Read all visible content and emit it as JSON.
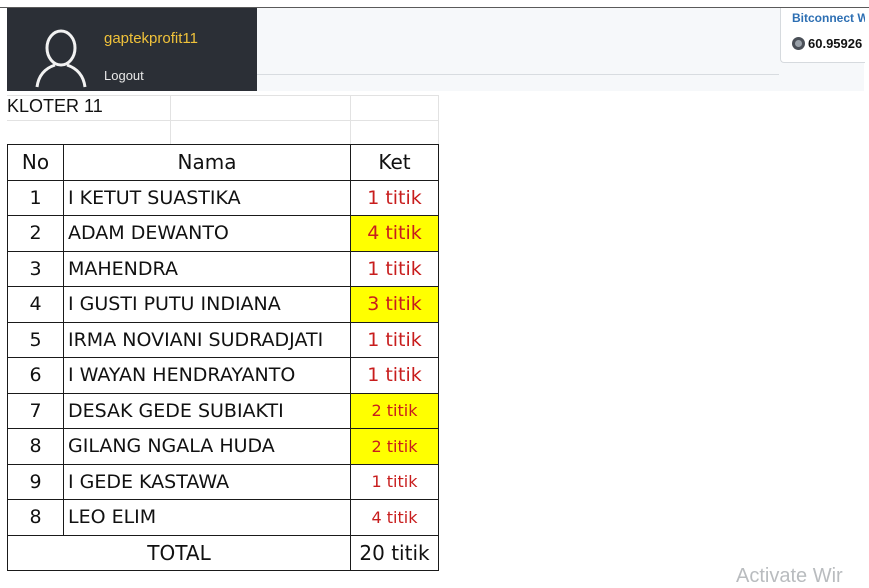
{
  "user": {
    "username": "gaptekprofit11",
    "logout_label": "Logout"
  },
  "wallet": {
    "title": "Bitconnect Wa",
    "balance": "60.95926"
  },
  "sheet": {
    "title": "KLOTER 11",
    "headers": {
      "no": "No",
      "nama": "Nama",
      "ket": "Ket"
    },
    "rows": [
      {
        "no": "1",
        "nama": "I KETUT SUASTIKA",
        "ket": "1 titik",
        "highlight": false
      },
      {
        "no": "2",
        "nama": "ADAM DEWANTO",
        "ket": "4 titik",
        "highlight": true
      },
      {
        "no": "3",
        "nama": "MAHENDRA",
        "ket": "1 titik",
        "highlight": false
      },
      {
        "no": "4",
        "nama": "I GUSTI PUTU INDIANA",
        "ket": "3 titik",
        "highlight": true
      },
      {
        "no": "5",
        "nama": "IRMA NOVIANI SUDRADJATI",
        "ket": "1 titik",
        "highlight": false
      },
      {
        "no": "6",
        "nama": "I WAYAN HENDRAYANTO",
        "ket": "1 titik",
        "highlight": false
      },
      {
        "no": "7",
        "nama": "DESAK GEDE SUBIAKTI",
        "ket": "2 titik",
        "highlight": true
      },
      {
        "no": "8",
        "nama": "GILANG NGALA HUDA",
        "ket": "2 titik",
        "highlight": true
      },
      {
        "no": "9",
        "nama": "I GEDE KASTAWA",
        "ket": "1 titik",
        "highlight": false
      },
      {
        "no": "8",
        "nama": "LEO ELIM",
        "ket": "4 titik",
        "highlight": false
      }
    ],
    "total": {
      "label": "TOTAL",
      "value": "20 titik"
    }
  },
  "watermark": "Activate Wir",
  "colors": {
    "highlight": "#ffff00",
    "ket_text": "#c81d1d",
    "username": "#f0c23a",
    "wallet_title": "#2d6fb3"
  },
  "icons": {
    "avatar": "user-silhouette-icon",
    "balance": "coin-icon"
  }
}
